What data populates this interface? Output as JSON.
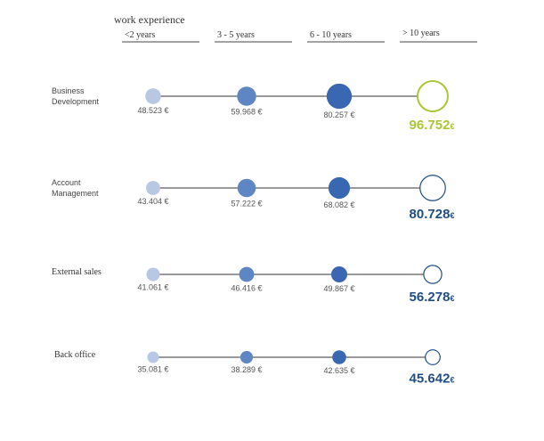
{
  "chart_data": {
    "type": "scatter",
    "title": "work experience",
    "categories": [
      "<2 years",
      "3 - 5 years",
      "6 - 10 years",
      "> 10 years"
    ],
    "currency_symbol": "€",
    "rows": [
      {
        "label_lines": [
          "Business",
          "Development"
        ],
        "values": [
          48523,
          59968,
          80257,
          96752
        ],
        "value_labels": [
          "48.523",
          "59.968",
          "80.257",
          "96.752"
        ],
        "highlight_color": "#a8c636"
      },
      {
        "label_lines": [
          "Account",
          "Management"
        ],
        "values": [
          43404,
          57222,
          68082,
          80728
        ],
        "value_labels": [
          "43.404",
          "57.222",
          "68.082",
          "80.728"
        ],
        "highlight_color": "#1f4e85"
      },
      {
        "label_lines": [
          "External sales"
        ],
        "values": [
          41061,
          46416,
          49867,
          56278
        ],
        "value_labels": [
          "41.061",
          "46.416",
          "49.867",
          "56.278"
        ],
        "highlight_color": "#1f4e85"
      },
      {
        "label_lines": [
          "Back office"
        ],
        "values": [
          35081,
          38289,
          42635,
          45642
        ],
        "value_labels": [
          "35.081",
          "38.289",
          "42.635",
          "45.642"
        ],
        "highlight_color": "#1f4e85"
      }
    ],
    "colors": {
      "dot_light": "#b7c7e4",
      "dot_mid": "#5f86c4",
      "dot_dark": "#3a67b1",
      "outline": "#1f4e85",
      "line": "#333333",
      "label": "#555555",
      "header_rule": "#444444"
    }
  }
}
